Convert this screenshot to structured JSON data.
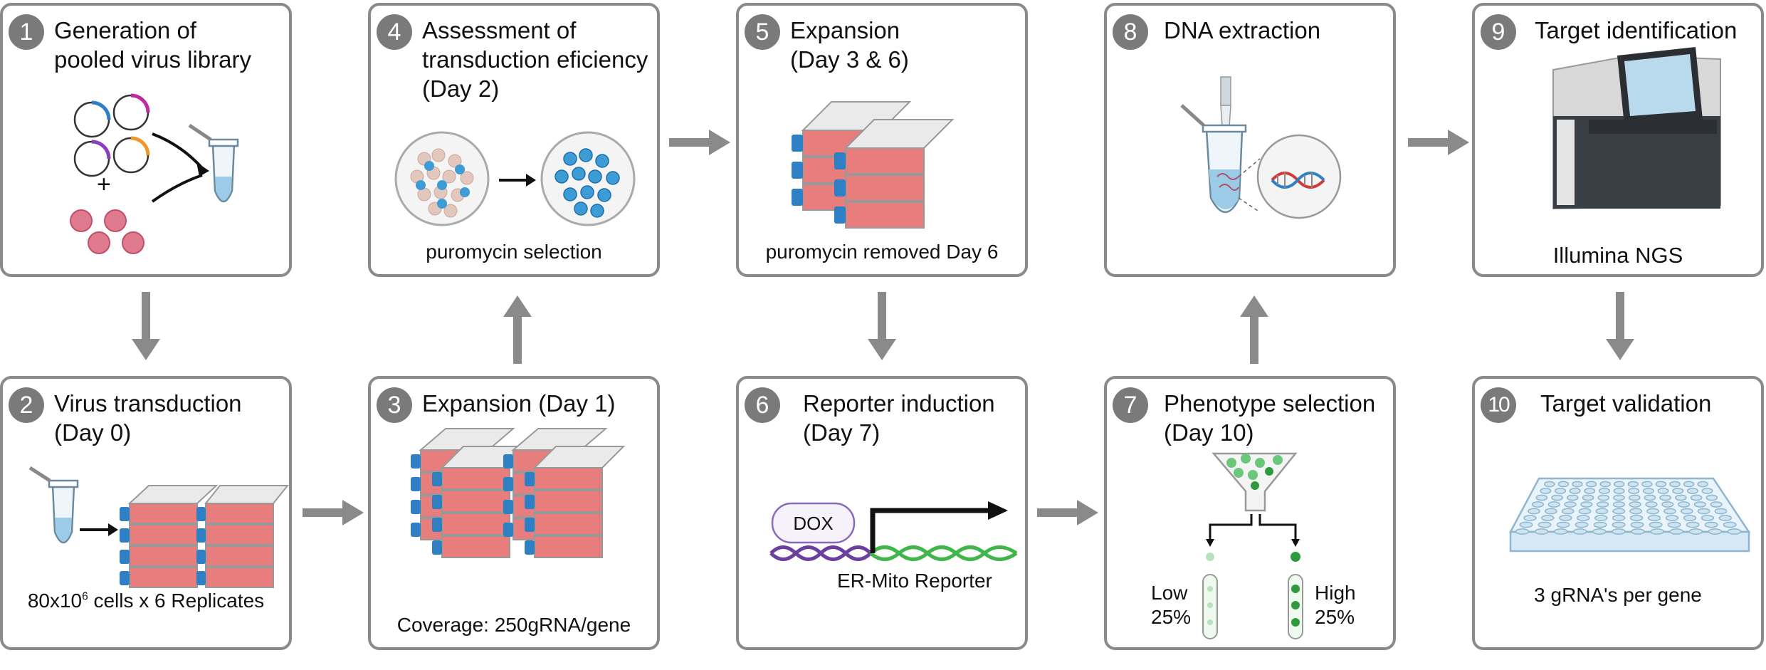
{
  "steps": [
    {
      "num": "1",
      "title": "Generation of\npooled virus library"
    },
    {
      "num": "2",
      "title": "Virus transduction\n(Day 0)",
      "caption_prefix": "80x10",
      "caption_sup": "6",
      "caption_suffix": " cells x 6 Replicates"
    },
    {
      "num": "3",
      "title": "Expansion (Day 1)",
      "caption": "Coverage: 250gRNA/gene"
    },
    {
      "num": "4",
      "title": "Assessment of\ntransduction eficiency\n(Day 2)",
      "caption": "puromycin selection"
    },
    {
      "num": "5",
      "title": "Expansion\n(Day 3 & 6)",
      "caption": "puromycin removed Day 6"
    },
    {
      "num": "6",
      "title": "Reporter induction\n(Day 7)",
      "dox": "DOX",
      "reporter": "ER-Mito Reporter"
    },
    {
      "num": "7",
      "title": "Phenotype selection\n(Day 10)",
      "low": "Low\n25%",
      "high": "High\n25%",
      "plus": "+"
    },
    {
      "num": "8",
      "title": "DNA extraction"
    },
    {
      "num": "9",
      "title": "Target identification",
      "caption": "Illumina NGS"
    },
    {
      "num": "10",
      "title": "Target validation",
      "caption": "3 gRNA's per gene"
    }
  ],
  "colors": {
    "border": "#8a8a8a",
    "badge": "#7a7a7a",
    "arrow": "#8a8a8a",
    "flask": "#e87d7d",
    "cap": "#2e7fc4",
    "cell": "#3d9bd6",
    "green": "#3fb54a",
    "purple": "#6b3fa0"
  }
}
